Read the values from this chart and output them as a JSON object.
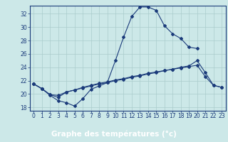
{
  "xlabel": "Graphe des températures (°c)",
  "bg_color": "#cce8e8",
  "plot_bg_color": "#cce8e8",
  "line_color": "#1a3a7a",
  "grid_color": "#aacccc",
  "footer_color": "#2244aa",
  "xlim": [
    -0.5,
    23.5
  ],
  "ylim": [
    17.5,
    33.2
  ],
  "yticks": [
    18,
    20,
    22,
    24,
    26,
    28,
    30,
    32
  ],
  "xticks": [
    0,
    1,
    2,
    3,
    4,
    5,
    6,
    7,
    8,
    9,
    10,
    11,
    12,
    13,
    14,
    15,
    16,
    17,
    18,
    19,
    20,
    21,
    22,
    23
  ],
  "line1_x": [
    0,
    1,
    2,
    3,
    4,
    5,
    6,
    7,
    8,
    9,
    10,
    11,
    12,
    13,
    14,
    15,
    16,
    17,
    18,
    19,
    20
  ],
  "line1_y": [
    21.5,
    20.8,
    19.8,
    19.0,
    18.7,
    18.2,
    19.3,
    20.7,
    21.2,
    21.7,
    25.0,
    28.5,
    31.6,
    33.0,
    33.0,
    32.5,
    30.2,
    29.0,
    28.3,
    27.0,
    26.8
  ],
  "line2_x": [
    0,
    1,
    2,
    3,
    4,
    5,
    6,
    7,
    8,
    9,
    10,
    11,
    12,
    13,
    14,
    15,
    16,
    17,
    18,
    19,
    20,
    21,
    22,
    23
  ],
  "line2_y": [
    21.5,
    20.8,
    19.9,
    19.8,
    20.3,
    20.6,
    20.9,
    21.2,
    21.5,
    21.7,
    22.0,
    22.2,
    22.5,
    22.7,
    23.0,
    23.2,
    23.5,
    23.7,
    24.0,
    24.2,
    25.0,
    23.2,
    21.3,
    21.0
  ],
  "line3_x": [
    0,
    1,
    2,
    3,
    4,
    5,
    6,
    7,
    8,
    9,
    10,
    11,
    12,
    13,
    14,
    15,
    16,
    17,
    18,
    19,
    20,
    21,
    22,
    23
  ],
  "line3_y": [
    21.5,
    20.8,
    19.9,
    19.5,
    20.3,
    20.6,
    21.0,
    21.3,
    21.6,
    21.8,
    22.1,
    22.3,
    22.6,
    22.8,
    23.1,
    23.3,
    23.5,
    23.7,
    23.9,
    24.1,
    24.3,
    22.6,
    21.3,
    21.0
  ]
}
